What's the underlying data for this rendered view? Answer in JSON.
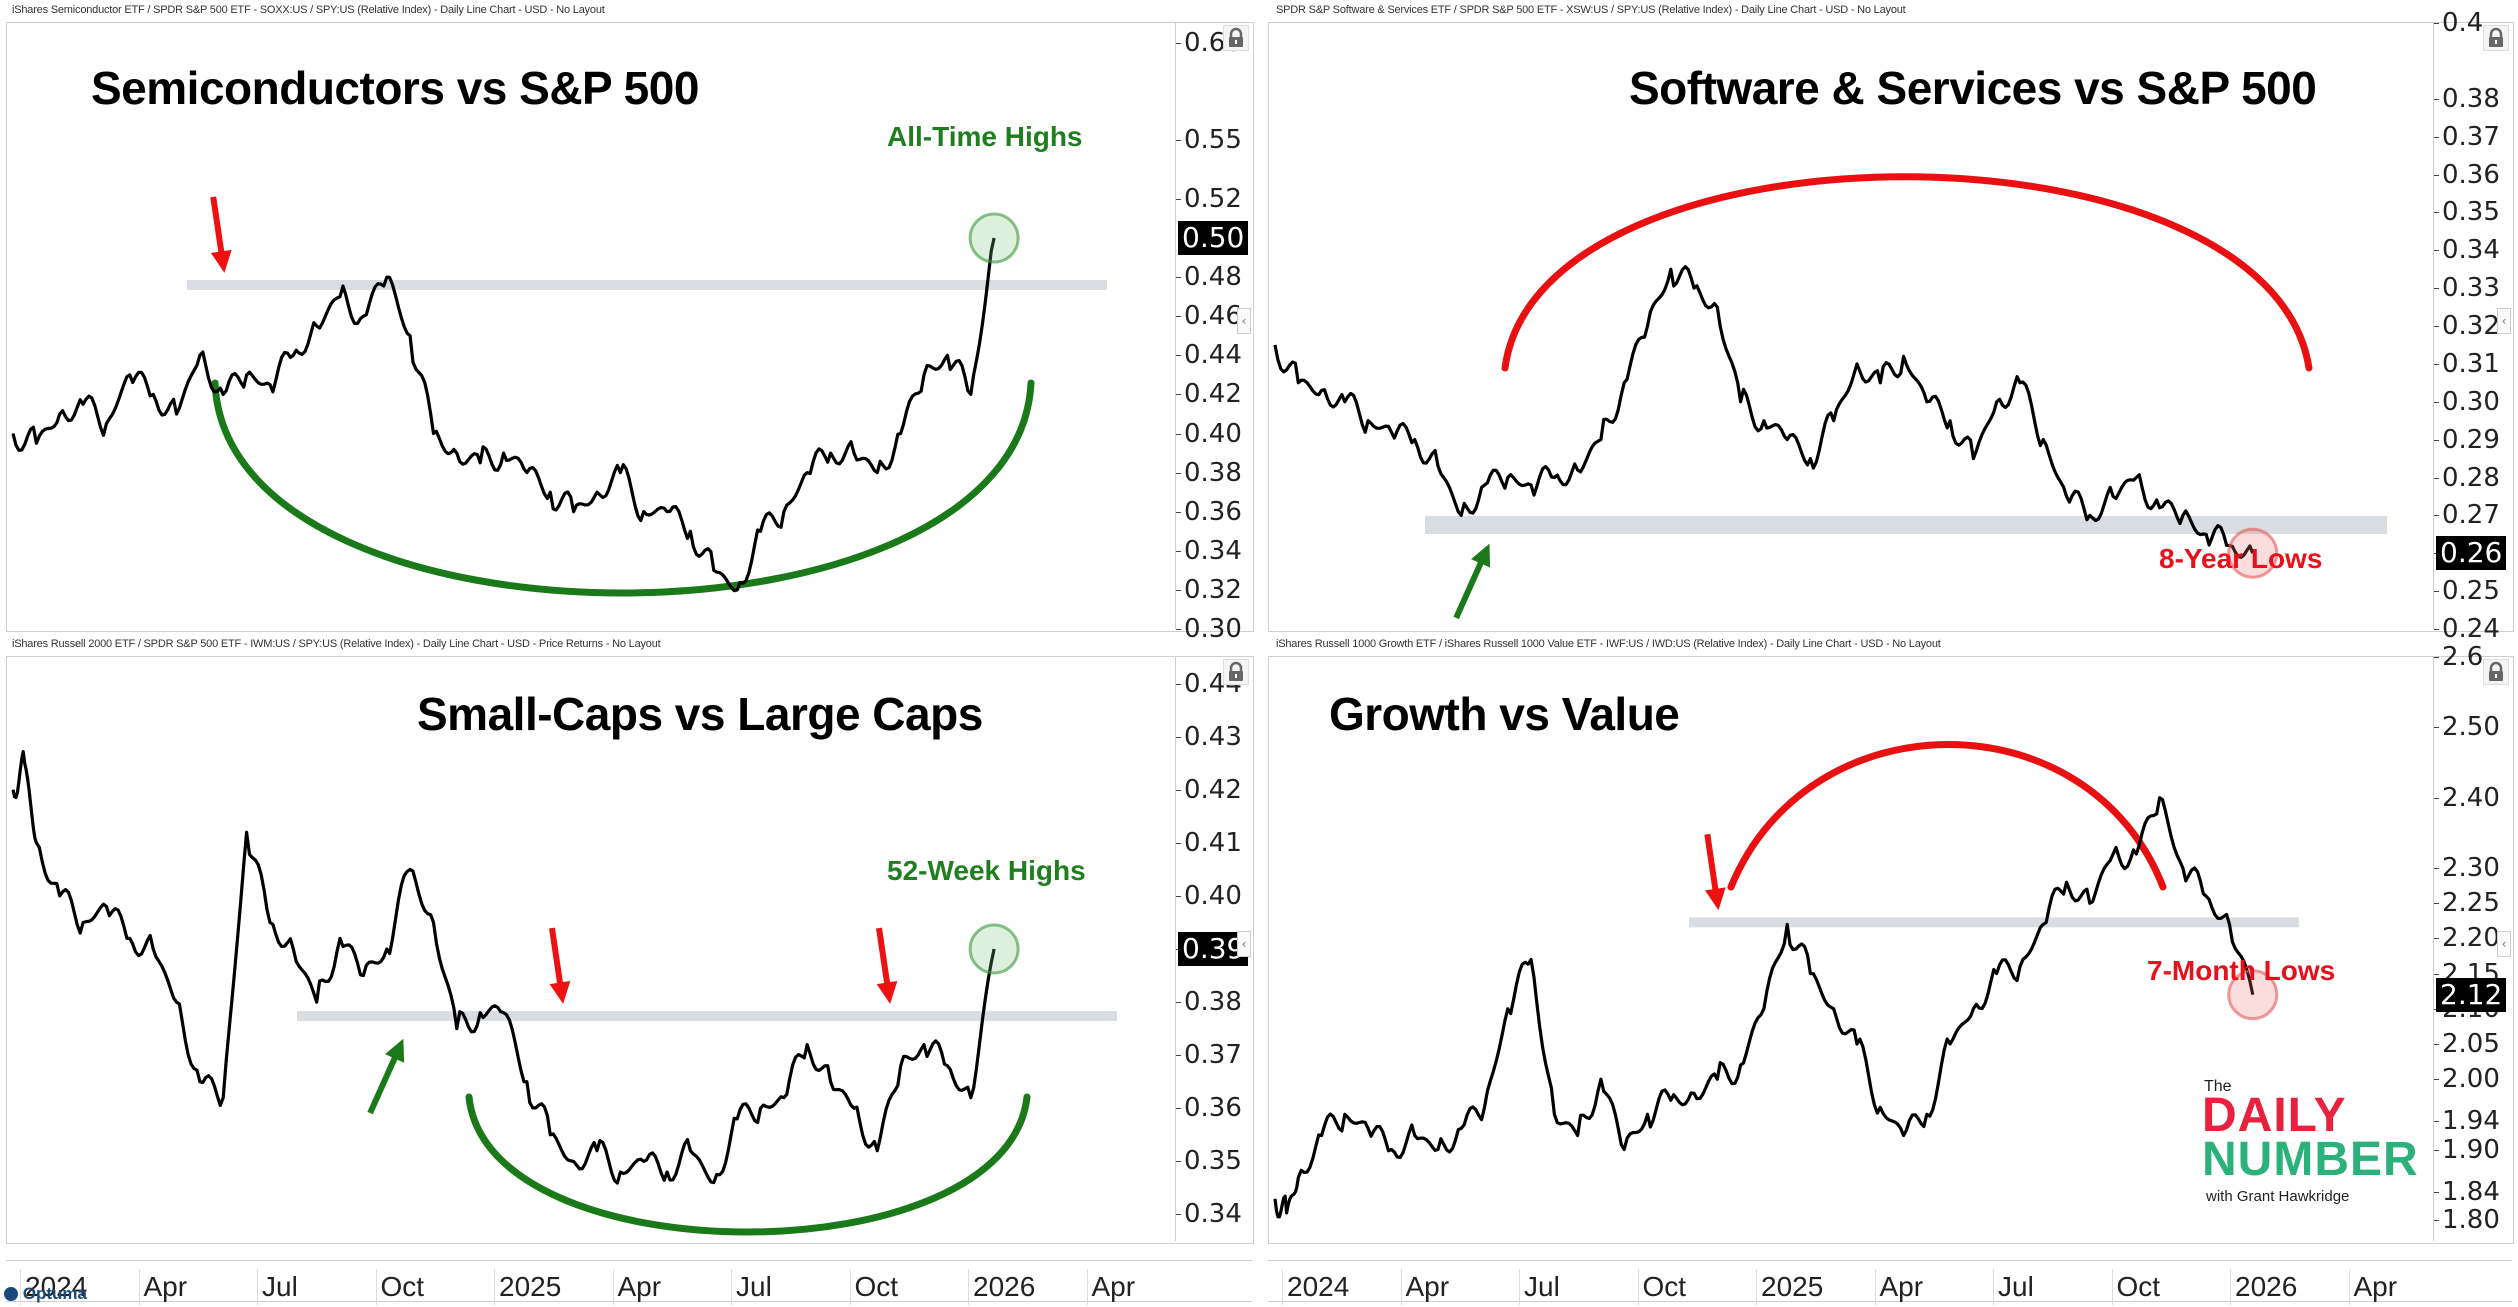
{
  "branding": {
    "optuma": "Optuma",
    "logo_the": "The",
    "logo_daily": "DAILY",
    "logo_number": "NUMBER",
    "logo_with": "with Grant Hawkridge",
    "colors": {
      "red": "#e8213f",
      "green": "#2bb27a"
    }
  },
  "chart_data": [
    {
      "id": "semis",
      "type": "line",
      "header": "iShares Semiconductor ETF / SPDR S&P 500 ETF - SOXX:US / SPY:US (Relative Index) - Daily Line Chart - USD - No Layout",
      "title": "Semiconductors vs S&P 500",
      "x_tick_labels": [
        "2024",
        "Apr",
        "Jul",
        "Oct",
        "2025",
        "Apr",
        "Jul",
        "Oct",
        "2026",
        "Apr"
      ],
      "x_range": [
        "2024-01-01",
        "2026-06-15"
      ],
      "y_tick_labels": [
        "0.60",
        "0.55",
        "0.52",
        "0.48",
        "0.46",
        "0.44",
        "0.42",
        "0.40",
        "0.38",
        "0.36",
        "0.34",
        "0.32",
        "0.30"
      ],
      "ylim": [
        0.3,
        0.61
      ],
      "last_value": "0.50",
      "series": [
        {
          "name": "SOXX/SPY",
          "x": [
            0,
            0.02,
            0.04,
            0.06,
            0.08,
            0.1,
            0.12,
            0.14,
            0.16,
            0.18,
            0.2,
            0.22,
            0.24,
            0.26,
            0.28,
            0.3,
            0.32,
            0.34,
            0.36,
            0.38,
            0.4,
            0.42,
            0.44,
            0.46,
            0.48,
            0.5,
            0.52,
            0.54,
            0.56,
            0.58,
            0.6,
            0.62,
            0.64,
            0.66,
            0.68,
            0.7,
            0.72,
            0.74,
            0.76,
            0.78,
            0.8,
            0.82,
            0.84
          ],
          "values": [
            0.4,
            0.395,
            0.41,
            0.415,
            0.405,
            0.43,
            0.42,
            0.41,
            0.44,
            0.42,
            0.43,
            0.425,
            0.44,
            0.455,
            0.47,
            0.46,
            0.48,
            0.45,
            0.4,
            0.39,
            0.385,
            0.39,
            0.38,
            0.37,
            0.36,
            0.37,
            0.38,
            0.36,
            0.36,
            0.35,
            0.33,
            0.32,
            0.35,
            0.36,
            0.38,
            0.39,
            0.39,
            0.38,
            0.4,
            0.43,
            0.44,
            0.42,
            0.5
          ]
        }
      ],
      "annotations": {
        "label": "All-Time Highs",
        "label_color": "#1f7f1f",
        "resistance_level": 0.475,
        "arc": "cup",
        "arc_color": "#1a7a1a",
        "arrows": [
          {
            "color": "red",
            "direction": "down",
            "at_x": 0.18
          }
        ],
        "circle_color": "green"
      }
    },
    {
      "id": "software",
      "type": "line",
      "header": "SPDR S&P Software & Services ETF / SPDR S&P 500 ETF - XSW:US / SPY:US (Relative Index) - Daily Line Chart - USD - No Layout",
      "title": "Software & Services vs S&P 500",
      "x_tick_labels": [
        "2024",
        "Apr",
        "Jul",
        "Oct",
        "2025",
        "Apr",
        "Jul",
        "Oct",
        "2026",
        "Apr"
      ],
      "x_range": [
        "2024-01-01",
        "2026-06-15"
      ],
      "y_tick_labels": [
        "0.4",
        "0.38",
        "0.37",
        "0.36",
        "0.35",
        "0.34",
        "0.33",
        "0.32",
        "0.31",
        "0.30",
        "0.29",
        "0.28",
        "0.27",
        "0.26",
        "0.25",
        "0.24"
      ],
      "ylim": [
        0.24,
        0.4
      ],
      "last_value": "0.26",
      "series": [
        {
          "name": "XSW/SPY",
          "x": [
            0,
            0.02,
            0.04,
            0.06,
            0.08,
            0.1,
            0.12,
            0.14,
            0.16,
            0.18,
            0.2,
            0.22,
            0.24,
            0.26,
            0.28,
            0.3,
            0.32,
            0.34,
            0.36,
            0.38,
            0.4,
            0.42,
            0.44,
            0.46,
            0.48,
            0.5,
            0.52,
            0.54,
            0.56,
            0.58,
            0.6,
            0.62,
            0.64,
            0.66,
            0.68,
            0.7,
            0.72,
            0.74,
            0.76,
            0.78,
            0.8,
            0.82,
            0.84
          ],
          "values": [
            0.315,
            0.305,
            0.303,
            0.3,
            0.295,
            0.292,
            0.29,
            0.283,
            0.27,
            0.278,
            0.28,
            0.278,
            0.28,
            0.282,
            0.29,
            0.305,
            0.32,
            0.335,
            0.33,
            0.325,
            0.3,
            0.295,
            0.29,
            0.285,
            0.295,
            0.31,
            0.305,
            0.312,
            0.3,
            0.295,
            0.285,
            0.3,
            0.305,
            0.29,
            0.275,
            0.27,
            0.275,
            0.28,
            0.272,
            0.27,
            0.265,
            0.262,
            0.26
          ]
        }
      ],
      "annotations": {
        "label": "8-Year Lows",
        "label_color": "#e8101a",
        "support_level": 0.268,
        "arc": "dome",
        "arc_color": "#e81010",
        "arrows": [
          {
            "color": "green",
            "direction": "up",
            "at_x": 0.19
          }
        ],
        "circle_color": "red"
      }
    },
    {
      "id": "smallcaps",
      "type": "line",
      "header": "iShares Russell 2000 ETF / SPDR S&P 500 ETF - IWM:US / SPY:US (Relative Index) - Daily Line Chart - USD - Price Returns - No Layout",
      "title": "Small-Caps vs Large Caps",
      "x_tick_labels": [
        "2024",
        "Apr",
        "Jul",
        "Oct",
        "2025",
        "Apr",
        "Jul",
        "Oct",
        "2026",
        "Apr"
      ],
      "x_range": [
        "2024-01-01",
        "2026-06-15"
      ],
      "y_tick_labels": [
        "0.44",
        "0.43",
        "0.42",
        "0.41",
        "0.40",
        "0.39",
        "0.38",
        "0.37",
        "0.36",
        "0.35",
        "0.34"
      ],
      "ylim": [
        0.335,
        0.445
      ],
      "last_value": "0.39",
      "series": [
        {
          "name": "IWM/SPY",
          "x": [
            0,
            0.01,
            0.02,
            0.04,
            0.06,
            0.08,
            0.1,
            0.12,
            0.14,
            0.16,
            0.18,
            0.2,
            0.22,
            0.24,
            0.26,
            0.28,
            0.3,
            0.32,
            0.34,
            0.36,
            0.38,
            0.4,
            0.42,
            0.44,
            0.46,
            0.48,
            0.5,
            0.52,
            0.54,
            0.56,
            0.58,
            0.6,
            0.62,
            0.64,
            0.66,
            0.68,
            0.7,
            0.72,
            0.74,
            0.76,
            0.78,
            0.8,
            0.82,
            0.84
          ],
          "values": [
            0.42,
            0.425,
            0.41,
            0.4,
            0.395,
            0.398,
            0.392,
            0.39,
            0.38,
            0.365,
            0.362,
            0.412,
            0.395,
            0.39,
            0.38,
            0.392,
            0.385,
            0.39,
            0.405,
            0.395,
            0.375,
            0.378,
            0.378,
            0.365,
            0.355,
            0.35,
            0.352,
            0.348,
            0.35,
            0.348,
            0.352,
            0.346,
            0.358,
            0.36,
            0.362,
            0.372,
            0.365,
            0.36,
            0.352,
            0.368,
            0.372,
            0.368,
            0.362,
            0.39
          ]
        }
      ],
      "annotations": {
        "label": "52-Week Highs",
        "label_color": "#1f7f1f",
        "resistance_level": 0.377,
        "arc": "cup",
        "arc_color": "#1a7a1a",
        "arrows": [
          {
            "color": "green",
            "direction": "up",
            "at_x": 0.34
          },
          {
            "color": "red",
            "direction": "down",
            "at_x": 0.47
          },
          {
            "color": "red",
            "direction": "down",
            "at_x": 0.75
          }
        ],
        "circle_color": "green"
      }
    },
    {
      "id": "growthvalue",
      "type": "line",
      "header": "iShares Russell 1000 Growth ETF / iShares Russell 1000 Value ETF - IWF:US / IWD:US (Relative Index) - Daily Line Chart - USD - No Layout",
      "title": "Growth vs Value",
      "x_tick_labels": [
        "2024",
        "Apr",
        "Jul",
        "Oct",
        "2025",
        "Apr",
        "Jul",
        "Oct",
        "2026",
        "Apr"
      ],
      "x_range": [
        "2024-01-01",
        "2026-06-15"
      ],
      "y_tick_labels": [
        "2.6",
        "2.50",
        "2.40",
        "2.30",
        "2.25",
        "2.20",
        "2.15",
        "2.10",
        "2.05",
        "2.00",
        "1.94",
        "1.90",
        "1.84",
        "1.80"
      ],
      "ylim": [
        1.77,
        2.6
      ],
      "last_value": "2.12",
      "series": [
        {
          "name": "IWF/IWD",
          "x": [
            0,
            0.01,
            0.02,
            0.04,
            0.06,
            0.08,
            0.1,
            0.12,
            0.14,
            0.16,
            0.18,
            0.2,
            0.22,
            0.24,
            0.26,
            0.28,
            0.3,
            0.32,
            0.34,
            0.36,
            0.38,
            0.4,
            0.42,
            0.44,
            0.46,
            0.48,
            0.5,
            0.52,
            0.54,
            0.56,
            0.58,
            0.6,
            0.62,
            0.64,
            0.66,
            0.68,
            0.7,
            0.72,
            0.74,
            0.76,
            0.78,
            0.8,
            0.82,
            0.84
          ],
          "values": [
            1.83,
            1.81,
            1.86,
            1.92,
            1.95,
            1.93,
            1.9,
            1.92,
            1.9,
            1.93,
            1.96,
            2.1,
            2.17,
            1.95,
            1.92,
            2.0,
            1.9,
            1.95,
            1.97,
            1.98,
            2.0,
            2.02,
            2.1,
            2.22,
            2.15,
            2.1,
            2.05,
            1.96,
            1.92,
            1.95,
            2.05,
            2.1,
            2.15,
            2.16,
            2.22,
            2.28,
            2.25,
            2.32,
            2.32,
            2.4,
            2.3,
            2.26,
            2.22,
            2.12
          ]
        }
      ],
      "annotations": {
        "label": "7-Month Lows",
        "label_color": "#e8101a",
        "support_level": 2.22,
        "arc": "dome",
        "arc_color": "#e81010",
        "arrows": [
          {
            "color": "red",
            "direction": "down",
            "at_x": 0.38
          }
        ],
        "circle_color": "red"
      }
    }
  ]
}
